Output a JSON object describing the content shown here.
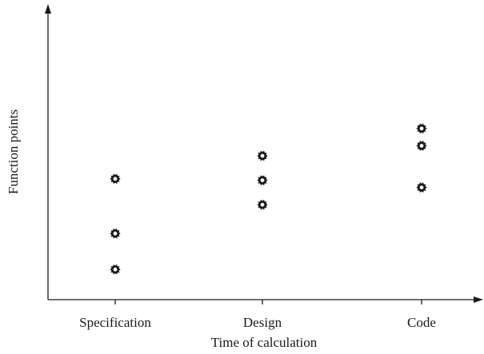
{
  "chart_data": {
    "type": "scatter",
    "title": "",
    "xlabel": "Time of calculation",
    "ylabel": "Function points",
    "categories": [
      "Specification",
      "Design",
      "Code"
    ],
    "points": [
      {
        "category": "Specification",
        "y": 4.2
      },
      {
        "category": "Specification",
        "y": 2.3
      },
      {
        "category": "Specification",
        "y": 1.05
      },
      {
        "category": "Design",
        "y": 5.0
      },
      {
        "category": "Design",
        "y": 4.15
      },
      {
        "category": "Design",
        "y": 3.3
      },
      {
        "category": "Code",
        "y": 5.95
      },
      {
        "category": "Code",
        "y": 5.35
      },
      {
        "category": "Code",
        "y": 3.9
      }
    ],
    "ylim": [
      0,
      10
    ],
    "y_ticks_shown": false,
    "grid": false,
    "legend": "none",
    "marker": "gear-dot",
    "colors": {
      "axis": "#1a1a1a",
      "marker": "#1a1a1a",
      "text": "#1a1a1a"
    }
  }
}
